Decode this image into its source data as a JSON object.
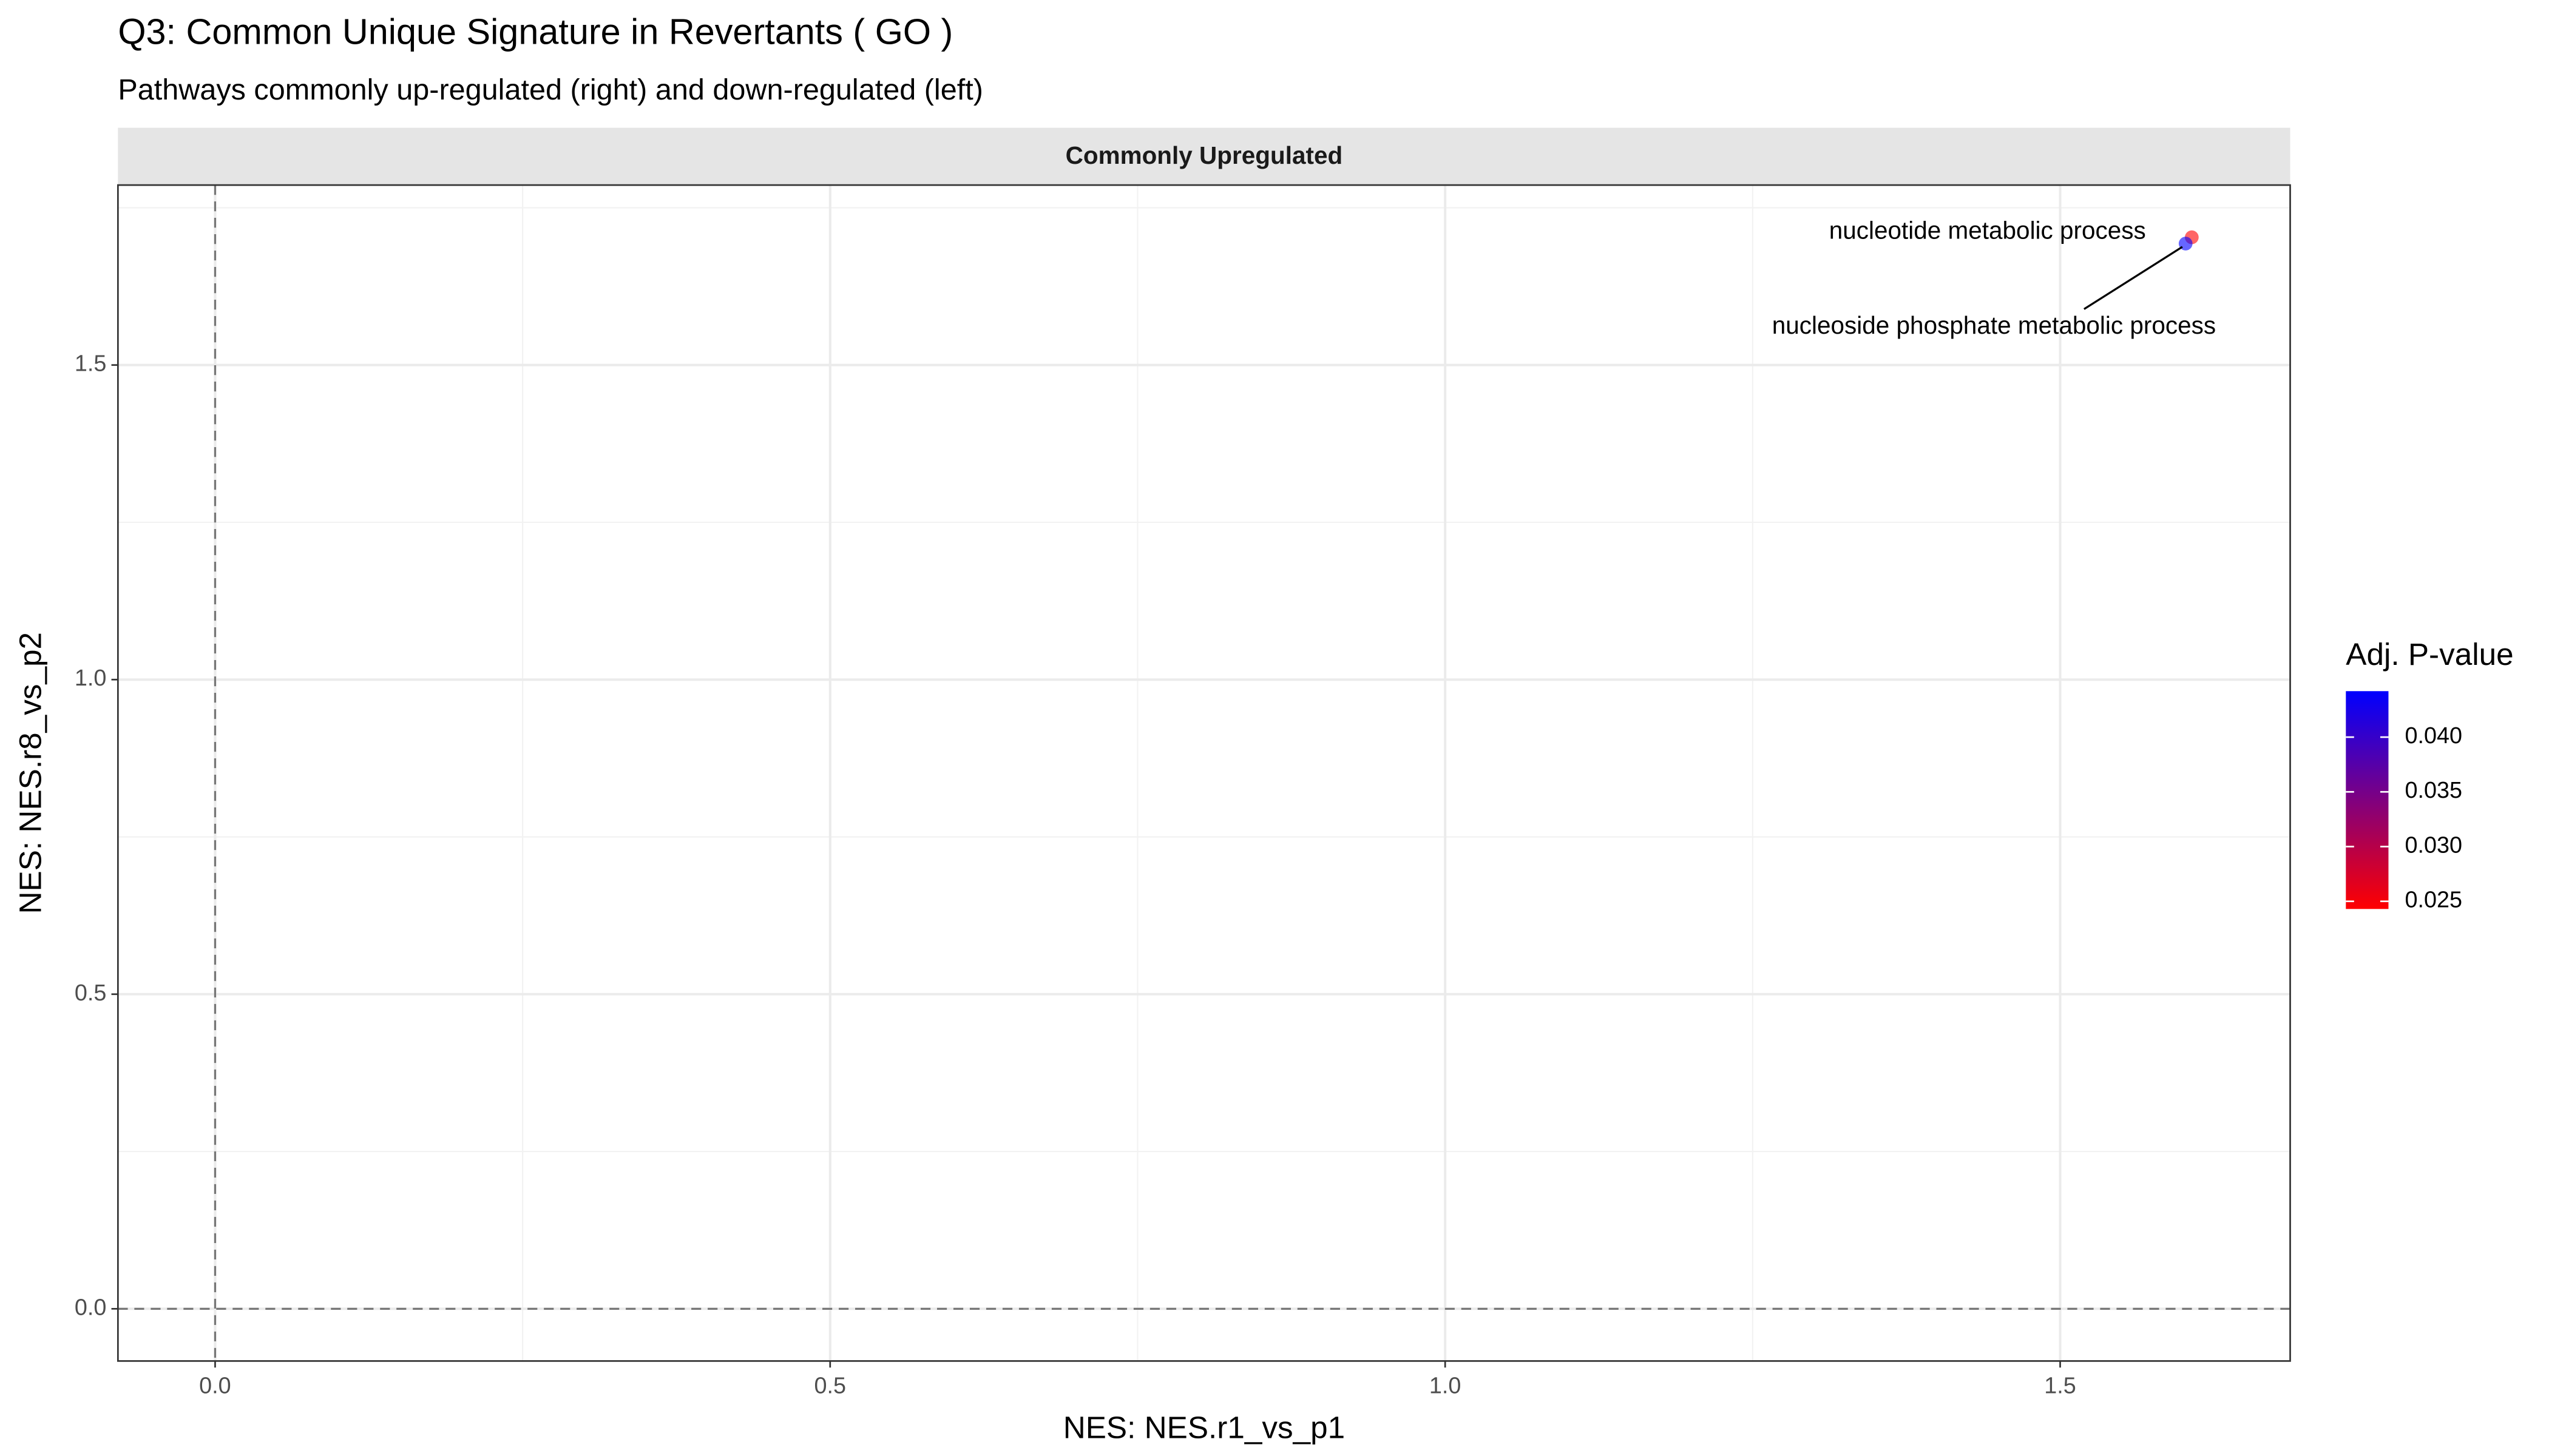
{
  "chart_data": {
    "type": "scatter",
    "title": "Q3: Common Unique Signature in Revertants ( GO )",
    "subtitle": "Pathways commonly up-regulated (right) and down-regulated (left)",
    "facet": "Commonly Upregulated",
    "x_label": "NES: NES.r1_vs_p1",
    "y_label": "NES: NES.r8_vs_p2",
    "xlim": [
      -0.079,
      1.687
    ],
    "ylim": [
      -0.083,
      1.786
    ],
    "xticks": [
      {
        "value": 0,
        "label": "0.0"
      },
      {
        "value": 0.5,
        "label": "0.5"
      },
      {
        "value": 1,
        "label": "1.0"
      },
      {
        "value": 1.5,
        "label": "1.5"
      }
    ],
    "yticks": [
      {
        "value": 0,
        "label": "0.0"
      },
      {
        "value": 0.5,
        "label": "0.5"
      },
      {
        "value": 1,
        "label": "1.0"
      },
      {
        "value": 1.5,
        "label": "1.5"
      }
    ],
    "xminor": [
      0.25,
      0.75,
      1.25
    ],
    "yminor": [
      0.25,
      0.75,
      1.25,
      1.75
    ],
    "vline": 0,
    "hline": 0,
    "grid": true,
    "points": [
      {
        "name": "nucleotide metabolic process",
        "x": 1.607,
        "y": 1.703,
        "padj": 0.0243
      },
      {
        "name": "nucleoside phosphate metabolic process",
        "x": 1.602,
        "y": 1.693,
        "padj": 0.0442
      }
    ],
    "legend": {
      "title": "Adj. P-value",
      "low_color": "#FF0000",
      "high_color": "#0000FF",
      "lim": [
        0.0243,
        0.0442
      ],
      "ticks": [
        {
          "value": 0.025,
          "label": "0.025"
        },
        {
          "value": 0.03,
          "label": "0.030"
        },
        {
          "value": 0.035,
          "label": "0.035"
        },
        {
          "value": 0.04,
          "label": "0.040"
        }
      ]
    }
  }
}
